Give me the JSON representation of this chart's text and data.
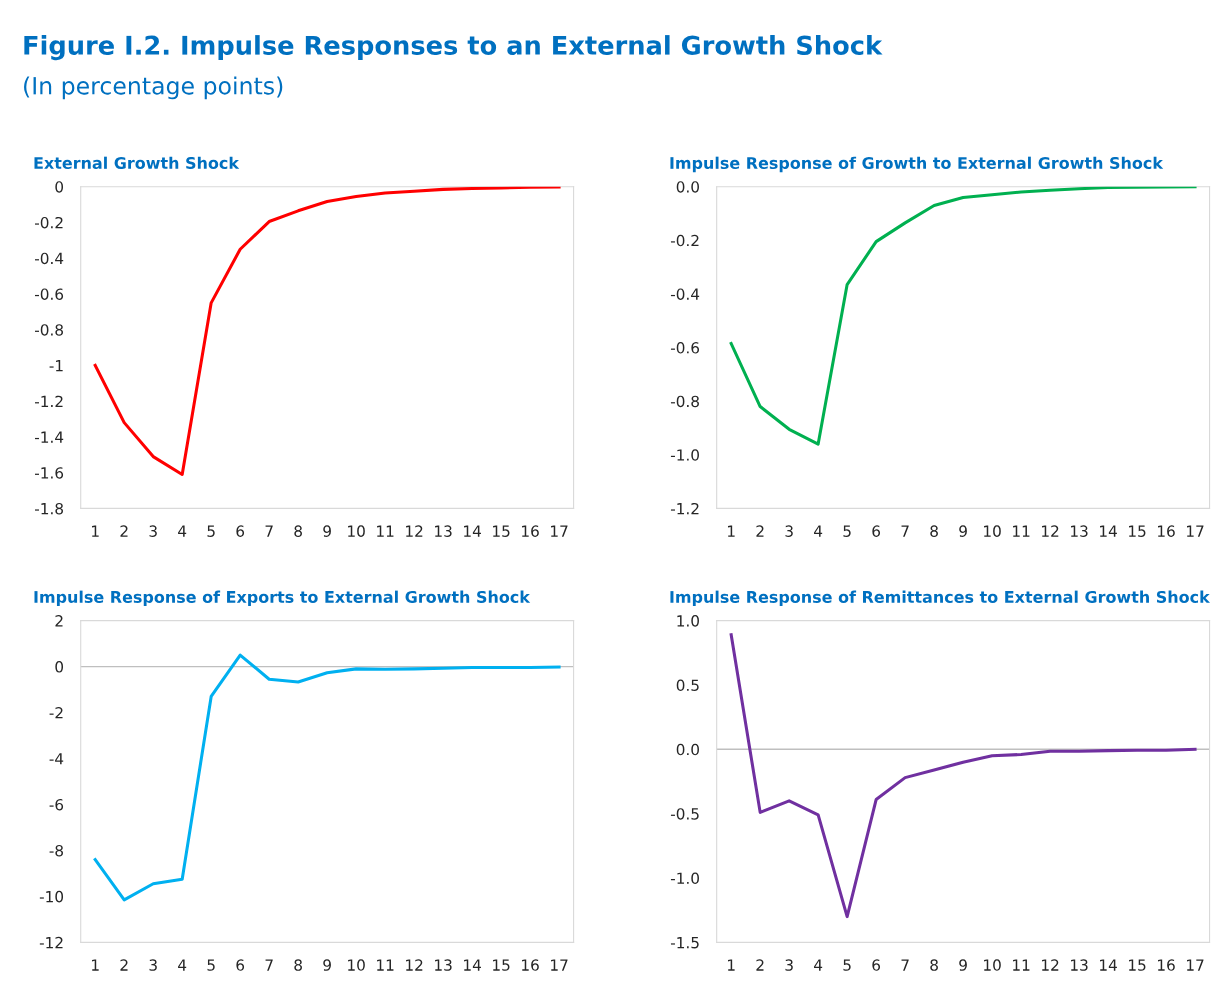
{
  "chart_data": [
    {
      "type": "line",
      "title": "External Growth Shock",
      "annotations": [
        "Figure I.2. Impulse Responses to an External Growth Shock",
        "(In percentage points)"
      ],
      "categories": [
        "1",
        "2",
        "3",
        "4",
        "5",
        "6",
        "7",
        "8",
        "9",
        "10",
        "11",
        "12",
        "13",
        "14",
        "15",
        "16",
        "17"
      ],
      "series": [
        {
          "color": "#ff0000",
          "values": [
            -1.0,
            -1.32,
            -1.51,
            -1.61,
            -0.65,
            -0.35,
            -0.195,
            -0.135,
            -0.083,
            -0.055,
            -0.035,
            -0.025,
            -0.015,
            -0.01,
            -0.007,
            -0.003,
            -0.002
          ]
        }
      ],
      "ylim": [
        -1.8,
        0
      ],
      "yticks": [
        0,
        -0.2,
        -0.4,
        -0.6,
        -0.8,
        {
          "value": -1,
          "label": "-1"
        },
        -1.2,
        -1.4,
        -1.6,
        -1.8
      ],
      "grid": false,
      "legend": false
    },
    {
      "type": "line",
      "title": "Impulse Response of Growth to External Growth Shock",
      "categories": [
        "1",
        "2",
        "3",
        "4",
        "5",
        "6",
        "7",
        "8",
        "9",
        "10",
        "11",
        "12",
        "13",
        "14",
        "15",
        "16",
        "17"
      ],
      "series": [
        {
          "color": "#00b050",
          "values": [
            -0.585,
            -0.82,
            -0.905,
            -0.96,
            -0.365,
            -0.205,
            -0.135,
            -0.07,
            -0.04,
            -0.03,
            -0.02,
            -0.013,
            -0.008,
            -0.003,
            -0.002,
            -0.001,
            0.0
          ]
        }
      ],
      "ylim": [
        -1.2,
        0
      ],
      "yticks": [
        {
          "value": 0,
          "label": "0.0"
        },
        -0.2,
        -0.4,
        -0.6,
        -0.8,
        {
          "value": -1,
          "label": "-1.0"
        },
        -1.2
      ],
      "grid": false,
      "legend": false
    },
    {
      "type": "line",
      "title": "Impulse Response of Exports to External Growth Shock",
      "categories": [
        "1",
        "2",
        "3",
        "4",
        "5",
        "6",
        "7",
        "8",
        "9",
        "10",
        "11",
        "12",
        "13",
        "14",
        "15",
        "16",
        "17"
      ],
      "series": [
        {
          "color": "#00b0f0",
          "values": [
            -8.4,
            -10.15,
            -9.45,
            -9.25,
            -1.3,
            0.5,
            -0.55,
            -0.67,
            -0.27,
            -0.1,
            -0.12,
            -0.1,
            -0.07,
            -0.04,
            -0.04,
            -0.04,
            -0.02
          ]
        }
      ],
      "ylim": [
        -12,
        2
      ],
      "yticks": [
        2,
        0,
        -2,
        -4,
        -6,
        -8,
        -10,
        -12
      ],
      "ref_lines": [
        {
          "axis": "y",
          "value": 0,
          "color": "#bfbfbf"
        }
      ],
      "grid": false,
      "legend": false
    },
    {
      "type": "line",
      "title": "Impulse Response of Remittances to External Growth Shock",
      "categories": [
        "1",
        "2",
        "3",
        "4",
        "5",
        "6",
        "7",
        "8",
        "9",
        "10",
        "11",
        "12",
        "13",
        "14",
        "15",
        "16",
        "17"
      ],
      "series": [
        {
          "color": "#7030a0",
          "values": [
            0.89,
            -0.49,
            -0.4,
            -0.51,
            -1.3,
            -0.39,
            -0.22,
            -0.16,
            -0.1,
            -0.05,
            -0.04,
            -0.015,
            -0.015,
            -0.01,
            -0.007,
            -0.007,
            0.0
          ]
        }
      ],
      "ylim": [
        -1.5,
        1
      ],
      "yticks": [
        {
          "value": 1,
          "label": "1.0"
        },
        0.5,
        {
          "value": 0,
          "label": "0.0"
        },
        -0.5,
        {
          "value": -1,
          "label": "-1.0"
        },
        -1.5
      ],
      "ref_lines": [
        {
          "axis": "y",
          "value": 0,
          "color": "#bfbfbf"
        }
      ],
      "grid": false,
      "legend": false
    }
  ]
}
